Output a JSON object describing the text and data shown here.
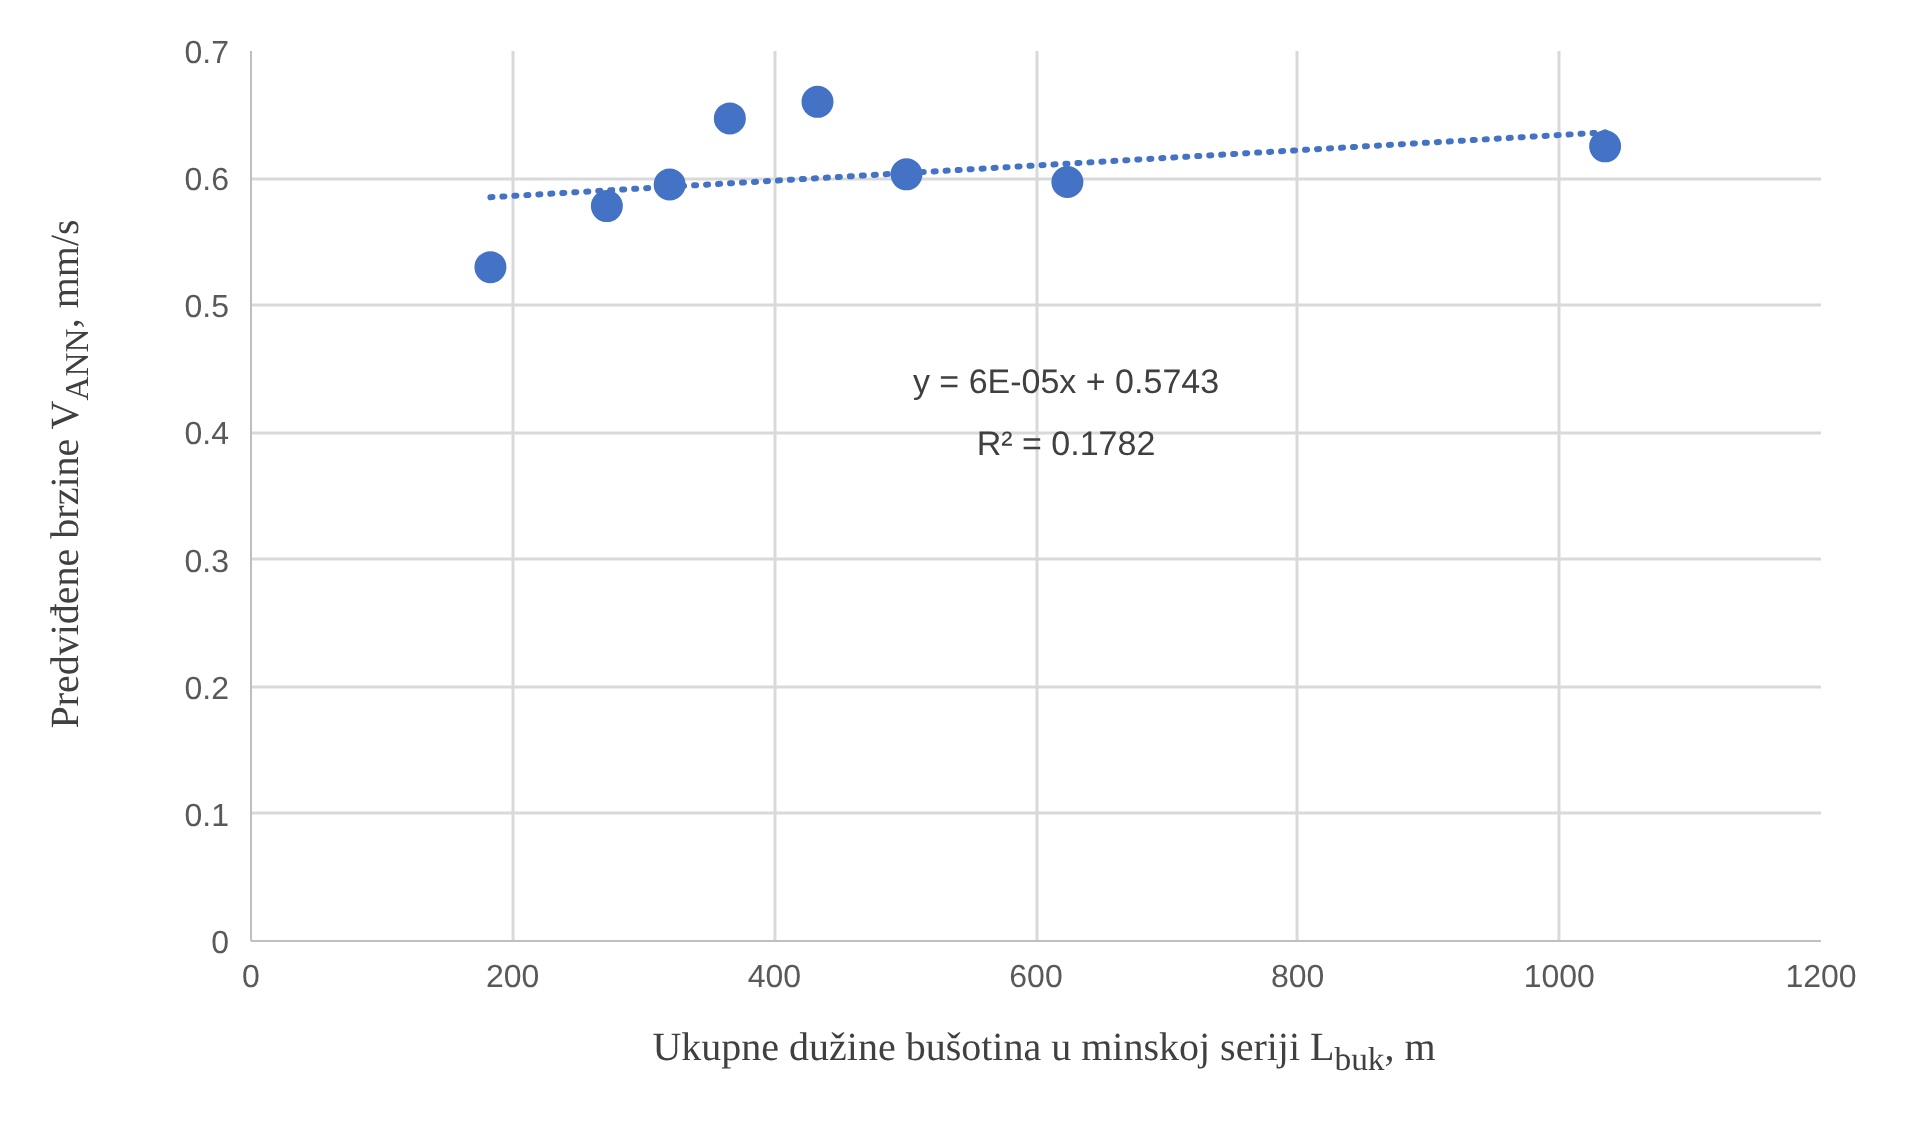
{
  "chart_data": {
    "type": "scatter",
    "xlabel": "Ukupne dužine bušotina u minskoj seriji L$_{buk}$, m",
    "ylabel": "Predviđene brzine V$_{ANN}$, mm/s",
    "series": [
      {
        "color": "#4472c4",
        "x": [
          183,
          272,
          320,
          366,
          433,
          501,
          624,
          1035
        ],
        "values": [
          0.53,
          0.578,
          0.595,
          0.647,
          0.66,
          0.603,
          0.597,
          0.625
        ],
        "marker": "circle"
      },
      {
        "type": "line",
        "color": "#4472c4",
        "x": [
          183,
          1035
        ],
        "values": [
          0.585,
          0.636
        ],
        "line_style": "dotted",
        "marker": "none"
      }
    ],
    "annotations": [
      "y = 6E-05x + 0.5743",
      "R² = 0.1782"
    ],
    "xlim": [
      0,
      1200
    ],
    "xticks": [
      0,
      200,
      400,
      600,
      800,
      1000,
      1200
    ],
    "ylim": [
      0,
      0.7
    ],
    "yticks": [
      0,
      0.1,
      0.2,
      0.3,
      0.4,
      0.5,
      0.6,
      0.7
    ],
    "grid": true
  }
}
